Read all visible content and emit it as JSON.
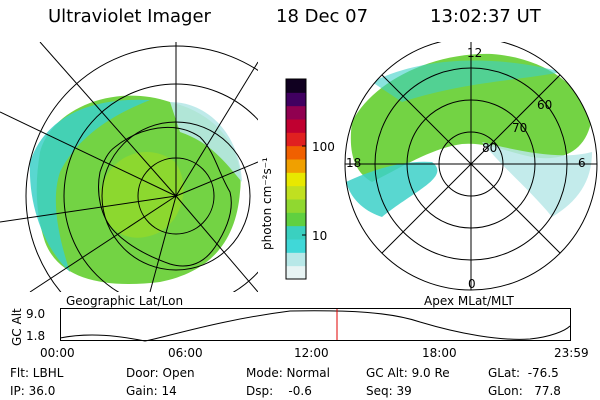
{
  "header": {
    "instrument": "Ultraviolet Imager",
    "date": "18 Dec 07",
    "time": "13:02:37 UT"
  },
  "colorbar": {
    "unit_label": "photon cm⁻²s⁻¹",
    "ticks": [
      "100",
      "10"
    ],
    "colors": [
      "#e8f4f4",
      "#b8e8e8",
      "#40d8d8",
      "#3ad0c0",
      "#60d040",
      "#90d830",
      "#c0e020",
      "#e8e800",
      "#f0a000",
      "#f06000",
      "#e02020",
      "#c00030",
      "#900050",
      "#400060",
      "#100020"
    ]
  },
  "left_map": {
    "caption": "Geographic Lat/Lon"
  },
  "right_map": {
    "caption": "Apex MLat/MLT",
    "mlt_labels": {
      "top": "12",
      "left": "18",
      "right": "6",
      "bottom": "0"
    },
    "lat_labels": [
      "60",
      "70",
      "80"
    ]
  },
  "altitude_plot": {
    "axis_label": "GC Alt",
    "y_ticks": [
      "9.0",
      "1.8"
    ],
    "x_ticks": [
      "00:00",
      "06:00",
      "12:00",
      "18:00",
      "23:59"
    ],
    "current_marker_color": "#e00000"
  },
  "status": {
    "filter": "Flt: LBHL",
    "ip": "IP: 36.0",
    "door": "Door: Open",
    "gain": "Gain: 14",
    "mode": "Mode: Normal",
    "dsp": "Dsp:    -0.6",
    "gc_alt": "GC Alt: 9.0 Re",
    "seq": "Seq: 39",
    "glat": "GLat:  -76.5",
    "glon": "GLon:   77.8"
  }
}
